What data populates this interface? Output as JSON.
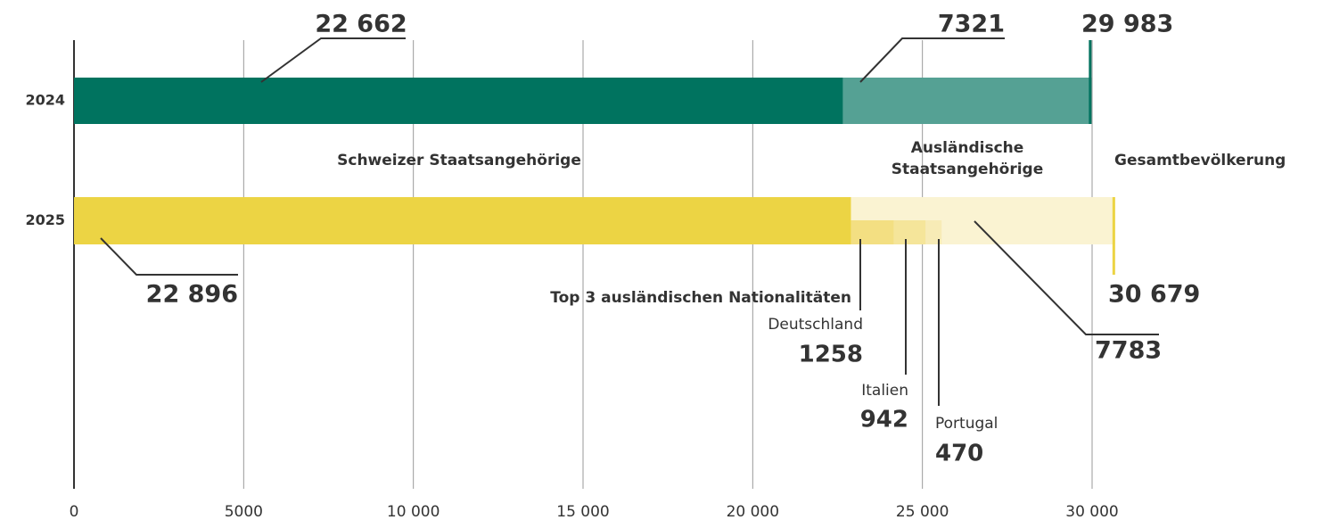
{
  "chart_data": {
    "type": "bar",
    "orientation": "horizontal",
    "categories": [
      "2024",
      "2025"
    ],
    "series": [
      {
        "name": "Schweizer Staatsangehörige",
        "colors": [
          "#00735f",
          "#ecd444"
        ],
        "values": [
          22662,
          22896
        ],
        "value_labels": [
          "22 662",
          "22 896"
        ]
      },
      {
        "name": "Ausländische Staatsangehörige",
        "colors": [
          "#55a194",
          "#faf3d2"
        ],
        "values": [
          7321,
          7783
        ],
        "value_labels": [
          "7321",
          "7783"
        ]
      }
    ],
    "totals": {
      "name": "Gesamtbevölkerung",
      "colors": [
        "#00735f",
        "#ecd444"
      ],
      "values": [
        29983,
        30679
      ],
      "value_labels": [
        "29 983",
        "30 679"
      ]
    },
    "breakdown": {
      "title": "Top 3 ausländischen Nationalitäten",
      "names": [
        "Deutschland",
        "Italien",
        "Portugal"
      ],
      "values": [
        1258,
        942,
        470
      ],
      "colors": [
        "#f3df82",
        "#f5e59a",
        "#f7ebb6"
      ]
    },
    "xlim": [
      0,
      30000
    ],
    "xticks": [
      0,
      5000,
      {
        "value": 10000,
        "label": "10 000"
      },
      {
        "value": 15000,
        "label": "15 000"
      },
      {
        "value": 20000,
        "label": "20 000"
      },
      {
        "value": 25000,
        "label": "25 000"
      },
      {
        "value": 30000,
        "label": "30 000"
      }
    ],
    "grid": true
  }
}
